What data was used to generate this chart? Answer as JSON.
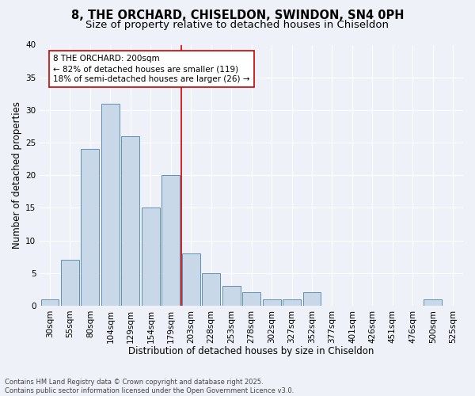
{
  "title": "8, THE ORCHARD, CHISELDON, SWINDON, SN4 0PH",
  "subtitle": "Size of property relative to detached houses in Chiseldon",
  "xlabel": "Distribution of detached houses by size in Chiseldon",
  "ylabel": "Number of detached properties",
  "categories": [
    "30sqm",
    "55sqm",
    "80sqm",
    "104sqm",
    "129sqm",
    "154sqm",
    "179sqm",
    "203sqm",
    "228sqm",
    "253sqm",
    "278sqm",
    "302sqm",
    "327sqm",
    "352sqm",
    "377sqm",
    "401sqm",
    "426sqm",
    "451sqm",
    "476sqm",
    "500sqm",
    "525sqm"
  ],
  "values": [
    1,
    7,
    24,
    31,
    26,
    15,
    20,
    8,
    5,
    3,
    2,
    1,
    1,
    2,
    0,
    0,
    0,
    0,
    0,
    1,
    0
  ],
  "bar_color": "#c8d8e8",
  "bar_edge_color": "#6090b0",
  "background_color": "#eef2f8",
  "grid_color": "#ffffff",
  "vline_color": "#cc0000",
  "annotation_line1": "8 THE ORCHARD: 200sqm",
  "annotation_line2": "← 82% of detached houses are smaller (119)",
  "annotation_line3": "18% of semi-detached houses are larger (26) →",
  "annotation_box_color": "#ffffff",
  "annotation_box_edge": "#cc0000",
  "ylim": [
    0,
    40
  ],
  "yticks": [
    0,
    5,
    10,
    15,
    20,
    25,
    30,
    35,
    40
  ],
  "footnote": "Contains HM Land Registry data © Crown copyright and database right 2025.\nContains public sector information licensed under the Open Government Licence v3.0.",
  "title_fontsize": 10.5,
  "subtitle_fontsize": 9.5,
  "xlabel_fontsize": 8.5,
  "ylabel_fontsize": 8.5,
  "tick_fontsize": 7.5,
  "annotation_fontsize": 7.5,
  "footnote_fontsize": 6.0
}
